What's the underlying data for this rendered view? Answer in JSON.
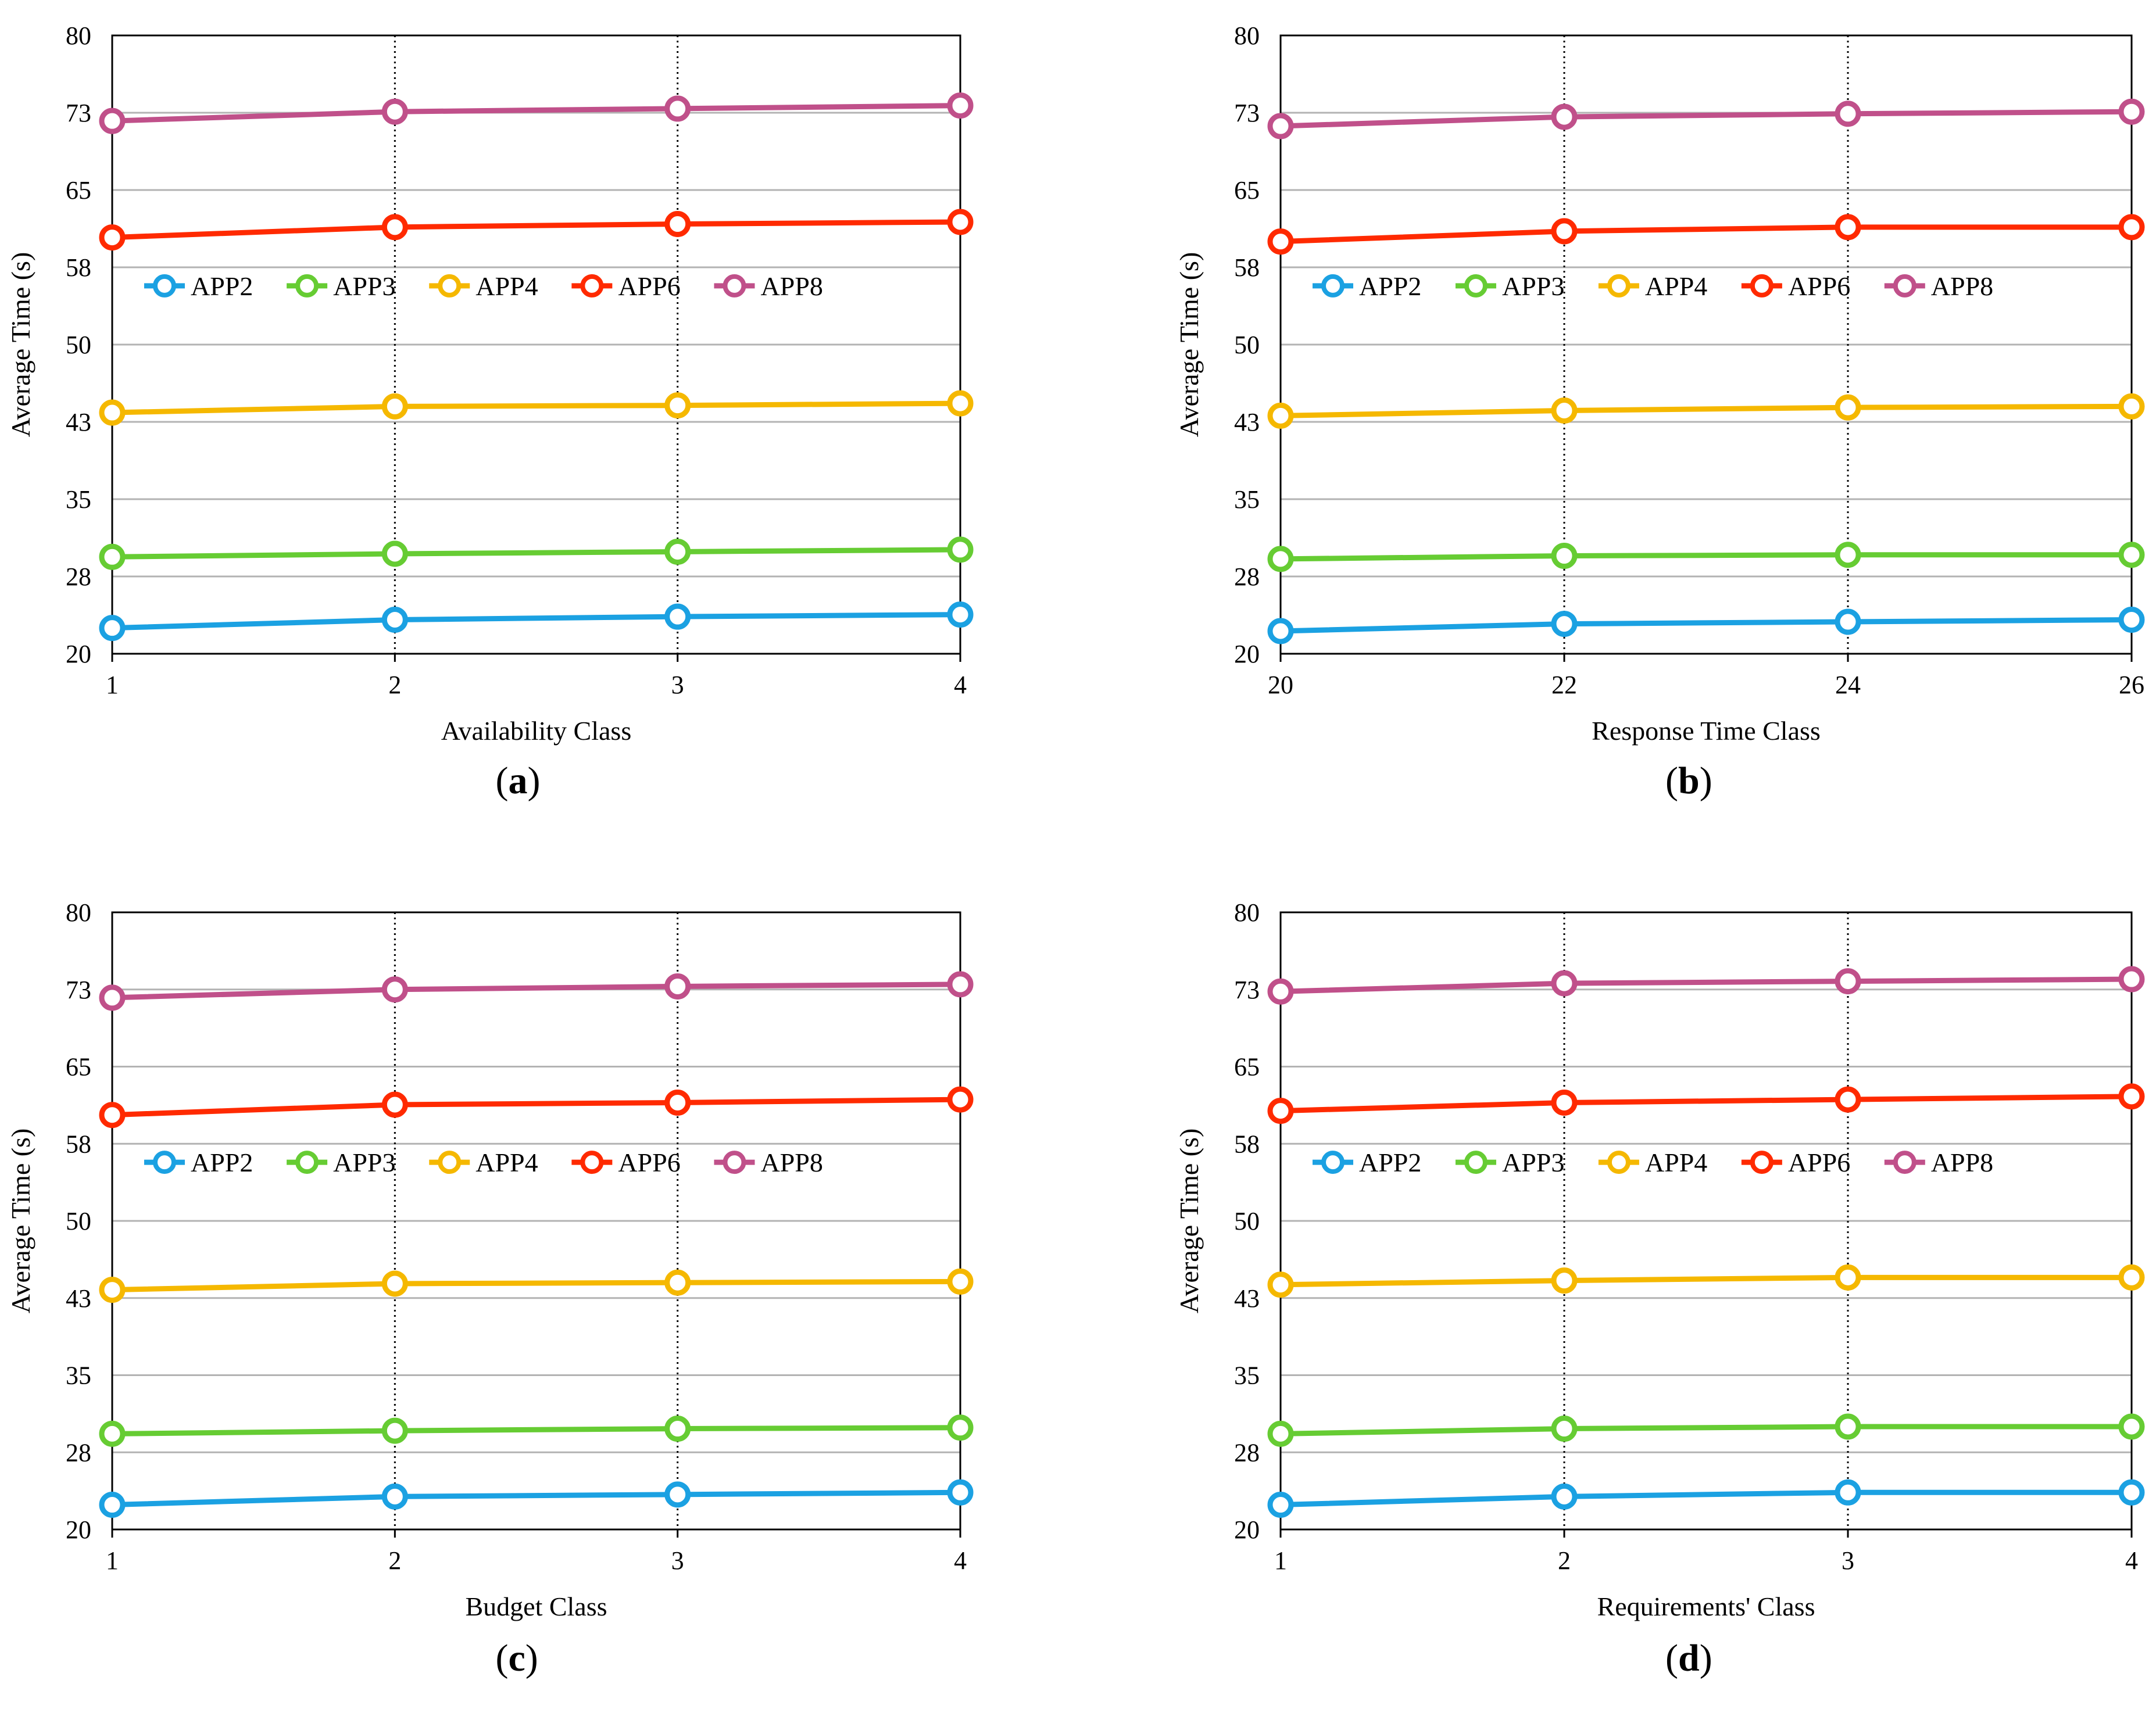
{
  "chart_data": [
    {
      "panel": "a",
      "type": "line",
      "title": "",
      "caption": "a",
      "xlabel": "Availability Class",
      "ylabel": "Average Time (s)",
      "categories": [
        "1",
        "2",
        "3",
        "4"
      ],
      "yticks": [
        "80",
        "73",
        "65",
        "58",
        "50",
        "43",
        "35",
        "28",
        "20"
      ],
      "ylim": [
        20,
        80
      ],
      "grid": true,
      "legend_position": "middle-left",
      "series": [
        {
          "name": "APP2",
          "color": "#1ba1e2",
          "values": [
            22.5,
            23.3,
            23.6,
            23.8
          ]
        },
        {
          "name": "APP3",
          "color": "#66cc33",
          "values": [
            29.4,
            29.7,
            29.9,
            30.1
          ]
        },
        {
          "name": "APP4",
          "color": "#f5b800",
          "values": [
            43.4,
            44.0,
            44.1,
            44.3
          ]
        },
        {
          "name": "APP6",
          "color": "#ff2a00",
          "values": [
            60.4,
            61.4,
            61.7,
            61.9
          ]
        },
        {
          "name": "APP8",
          "color": "#c0508a",
          "values": [
            71.7,
            72.6,
            72.9,
            73.2
          ]
        }
      ]
    },
    {
      "panel": "b",
      "type": "line",
      "title": "",
      "caption": "b",
      "xlabel": "Response Time Class",
      "ylabel": "Average Time (s)",
      "categories": [
        "20",
        "22",
        "24",
        "26"
      ],
      "yticks": [
        "80",
        "73",
        "65",
        "58",
        "50",
        "43",
        "35",
        "28",
        "20"
      ],
      "ylim": [
        20,
        80
      ],
      "grid": true,
      "legend_position": "middle-left",
      "series": [
        {
          "name": "APP2",
          "color": "#1ba1e2",
          "values": [
            22.2,
            22.9,
            23.1,
            23.3
          ]
        },
        {
          "name": "APP3",
          "color": "#66cc33",
          "values": [
            29.2,
            29.5,
            29.6,
            29.6
          ]
        },
        {
          "name": "APP4",
          "color": "#f5b800",
          "values": [
            43.1,
            43.6,
            43.9,
            44.0
          ]
        },
        {
          "name": "APP6",
          "color": "#ff2a00",
          "values": [
            60.0,
            61.0,
            61.4,
            61.4
          ]
        },
        {
          "name": "APP8",
          "color": "#c0508a",
          "values": [
            71.2,
            72.1,
            72.4,
            72.6
          ]
        }
      ]
    },
    {
      "panel": "c",
      "type": "line",
      "title": "",
      "caption": "c",
      "xlabel": "Budget Class",
      "ylabel": "Average Time (s)",
      "categories": [
        "1",
        "2",
        "3",
        "4"
      ],
      "yticks": [
        "80",
        "73",
        "65",
        "58",
        "50",
        "43",
        "35",
        "28",
        "20"
      ],
      "ylim": [
        20,
        80
      ],
      "grid": true,
      "legend_position": "middle-left",
      "series": [
        {
          "name": "APP2",
          "color": "#1ba1e2",
          "values": [
            22.4,
            23.2,
            23.4,
            23.6
          ]
        },
        {
          "name": "APP3",
          "color": "#66cc33",
          "values": [
            29.3,
            29.6,
            29.8,
            29.9
          ]
        },
        {
          "name": "APP4",
          "color": "#f5b800",
          "values": [
            43.3,
            43.9,
            44.0,
            44.1
          ]
        },
        {
          "name": "APP6",
          "color": "#ff2a00",
          "values": [
            60.3,
            61.3,
            61.5,
            61.8
          ]
        },
        {
          "name": "APP8",
          "color": "#c0508a",
          "values": [
            71.7,
            72.5,
            72.8,
            73.0
          ]
        }
      ]
    },
    {
      "panel": "d",
      "type": "line",
      "title": "",
      "caption": "d",
      "xlabel": "Requirements' Class",
      "ylabel": "Average Time (s)",
      "categories": [
        "1",
        "2",
        "3",
        "4"
      ],
      "yticks": [
        "80",
        "73",
        "65",
        "58",
        "50",
        "43",
        "35",
        "28",
        "20"
      ],
      "ylim": [
        20,
        80
      ],
      "grid": true,
      "legend_position": "middle-left",
      "series": [
        {
          "name": "APP2",
          "color": "#1ba1e2",
          "values": [
            22.4,
            23.2,
            23.6,
            23.6
          ]
        },
        {
          "name": "APP3",
          "color": "#66cc33",
          "values": [
            29.3,
            29.8,
            30.0,
            30.0
          ]
        },
        {
          "name": "APP4",
          "color": "#f5b800",
          "values": [
            43.8,
            44.2,
            44.5,
            44.5
          ]
        },
        {
          "name": "APP6",
          "color": "#ff2a00",
          "values": [
            60.7,
            61.5,
            61.8,
            62.1
          ]
        },
        {
          "name": "APP8",
          "color": "#c0508a",
          "values": [
            72.3,
            73.1,
            73.3,
            73.5
          ]
        }
      ]
    }
  ]
}
